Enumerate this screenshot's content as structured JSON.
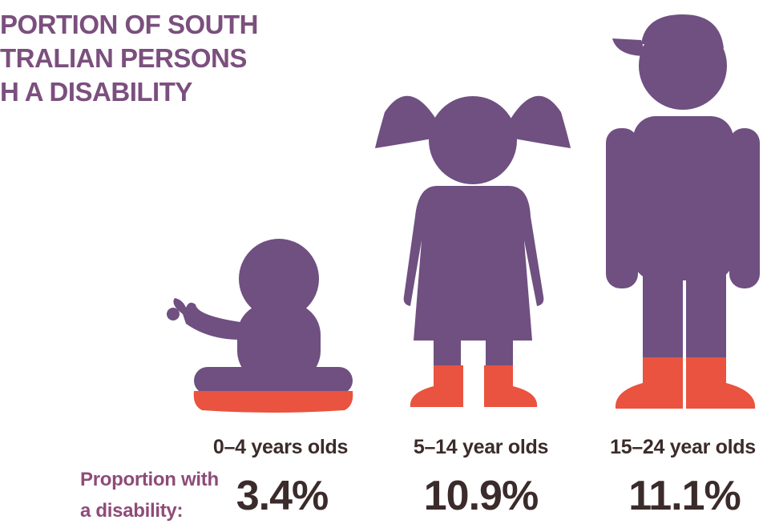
{
  "header": {
    "title_lines": [
      "PORTION OF SOUTH",
      "TRALIAN PERSONS",
      "H A DISABILITY"
    ]
  },
  "caption": {
    "lines": [
      "Proportion with",
      "a disability:"
    ]
  },
  "groups": [
    {
      "label": "0–4 years olds",
      "value": "3.4%"
    },
    {
      "label": "5–14 year olds",
      "value": "10.9%"
    },
    {
      "label": "15–24 year olds",
      "value": "11.1%"
    }
  ]
}
